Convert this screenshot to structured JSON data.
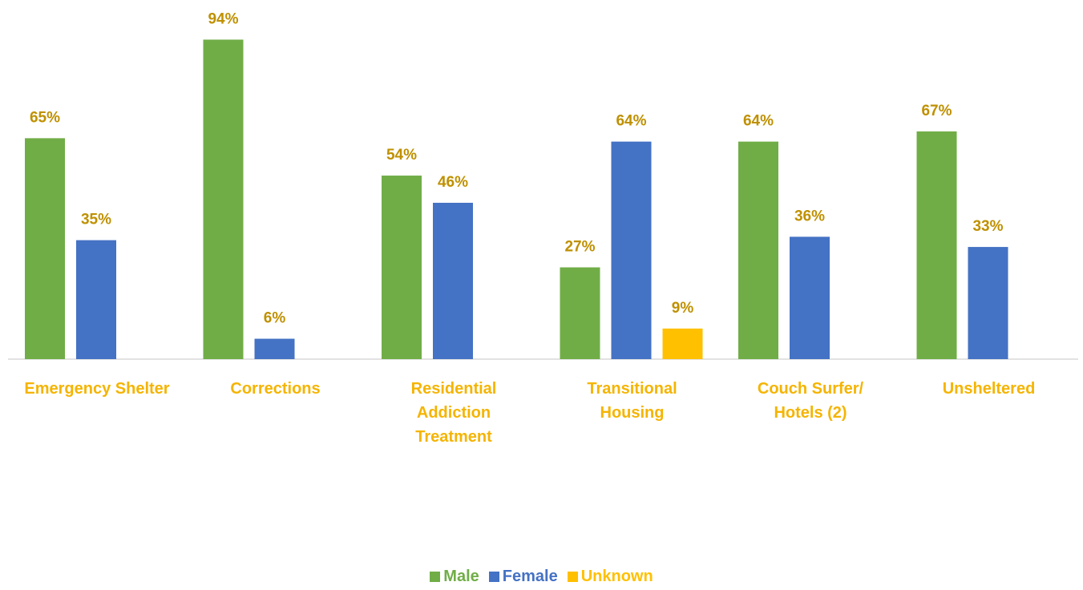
{
  "chart_data": {
    "type": "bar",
    "categories": [
      "Emergency Shelter",
      "Corrections",
      "Residential\nAddiction\nTreatment",
      "Transitional\nHousing",
      "Couch Surfer/\nHotels (2)",
      "Unsheltered"
    ],
    "series": [
      {
        "name": "Male",
        "color": "#70ad47",
        "values": [
          65,
          94,
          54,
          27,
          64,
          67
        ],
        "value_labels": [
          "65%",
          "94%",
          "54%",
          "27%",
          "64%",
          "67%"
        ]
      },
      {
        "name": "Female",
        "color": "#4472c4",
        "values": [
          35,
          6,
          46,
          64,
          36,
          33
        ],
        "value_labels": [
          "35%",
          "6%",
          "46%",
          "64%",
          "36%",
          "33%"
        ]
      },
      {
        "name": "Unknown",
        "color": "#ffc000",
        "values": [
          null,
          null,
          null,
          9,
          null,
          null
        ],
        "value_labels": [
          null,
          null,
          null,
          "9%",
          null,
          null
        ]
      }
    ],
    "ylim": [
      0,
      100
    ],
    "legend": "bottom"
  }
}
